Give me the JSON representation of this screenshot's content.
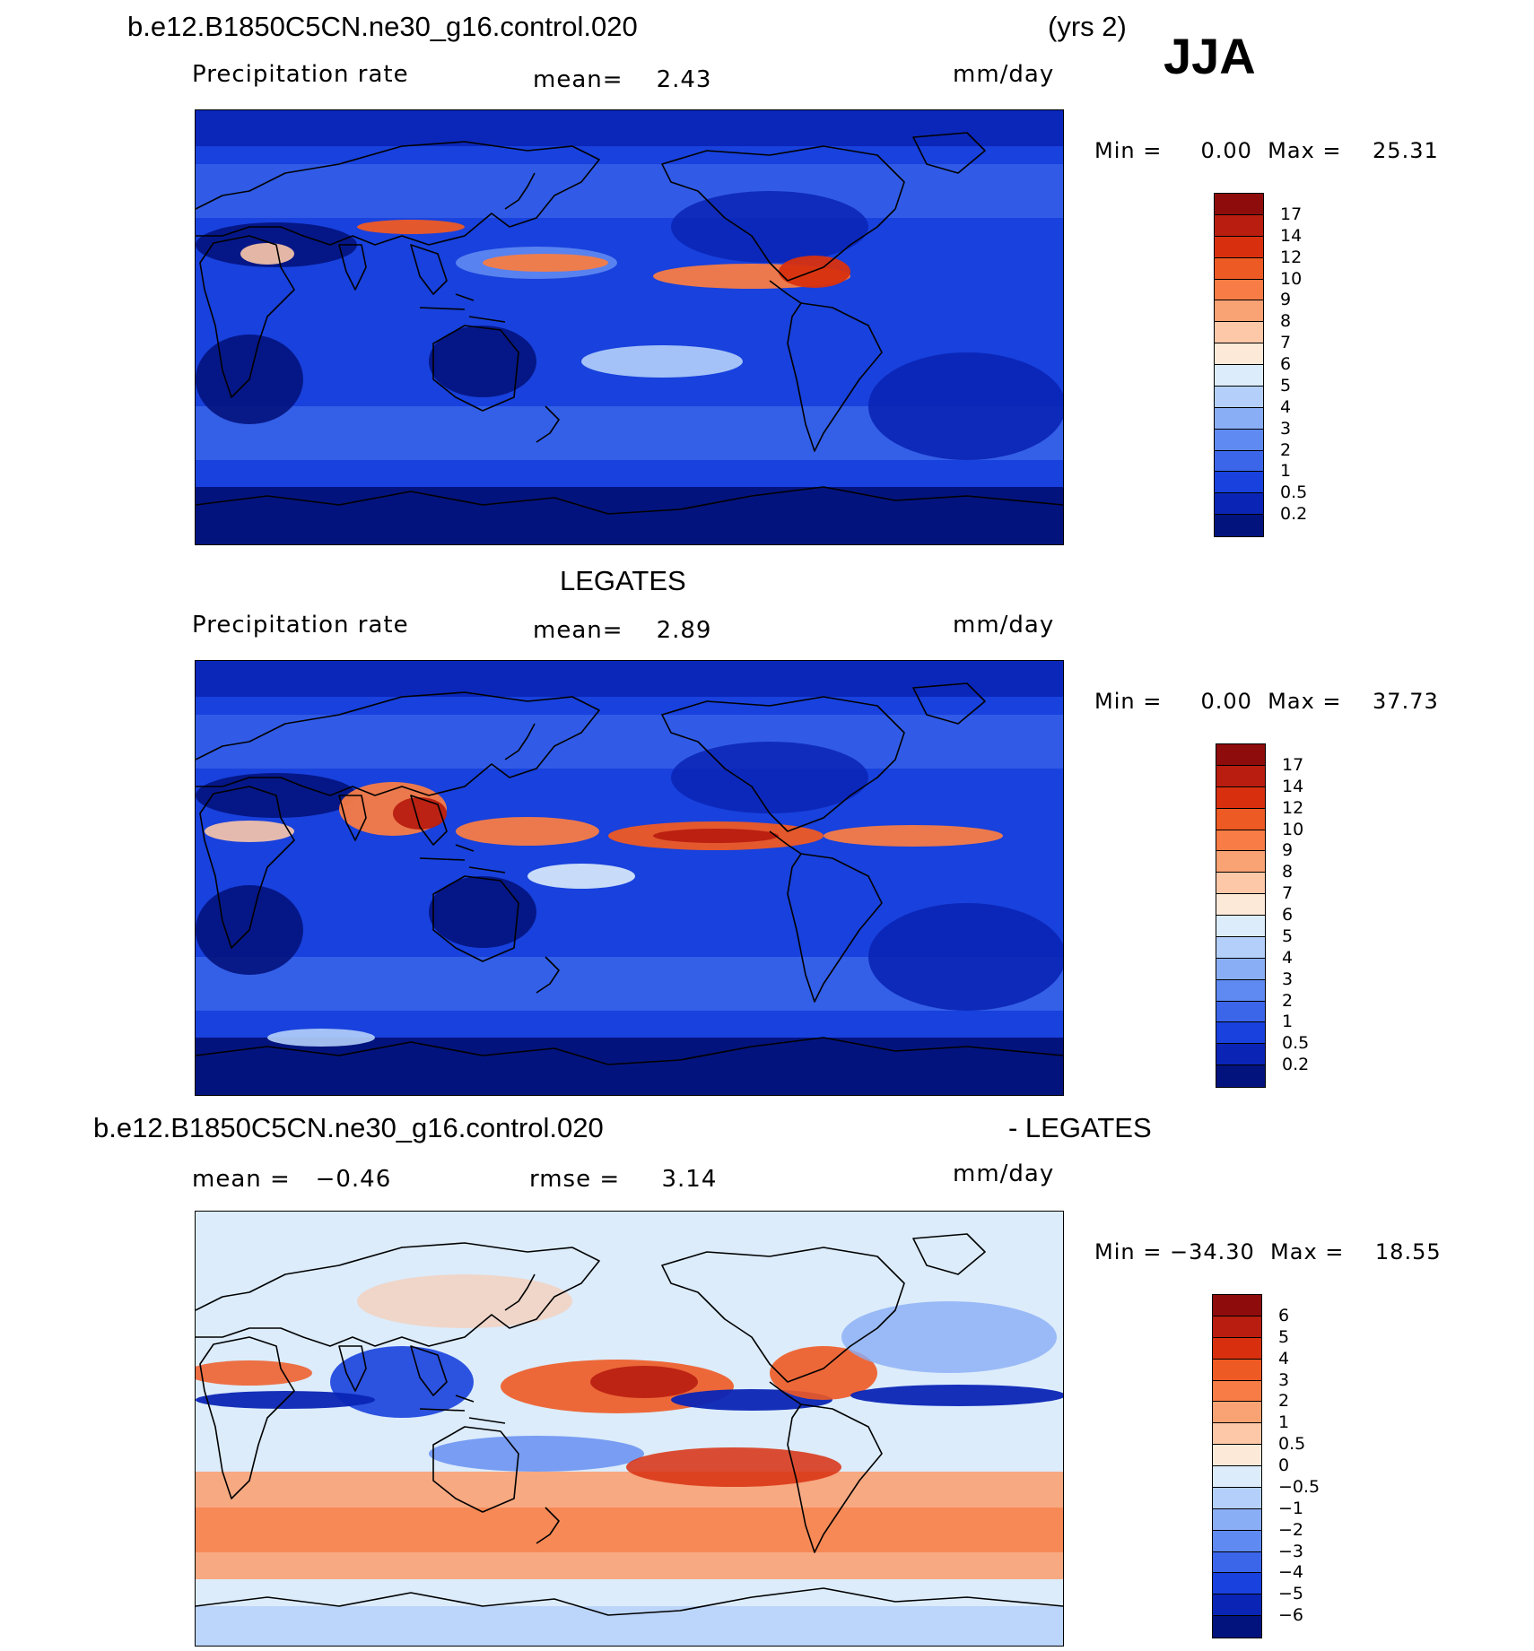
{
  "header": {
    "case_name": "b.e12.B1850C5CN.ne30_g16.control.020",
    "years": "(yrs 2)",
    "season": "JJA"
  },
  "panels": [
    {
      "id": "model",
      "title": "",
      "variable": "Precipitation rate",
      "stat_text": "mean=    2.43",
      "units": "mm/day",
      "minmax": "Min =     0.00  Max =    25.31",
      "colorbar_levels": [
        "17",
        "14",
        "12",
        "10",
        "9",
        "8",
        "7",
        "6",
        "5",
        "4",
        "3",
        "2",
        "1",
        "0.5",
        "0.2"
      ],
      "colors": [
        "#8e0c0c",
        "#b81d10",
        "#d8300f",
        "#ee5a23",
        "#f77c45",
        "#f9a274",
        "#fcc8a8",
        "#fde9d8",
        "#dcecfb",
        "#b4d0fa",
        "#8aaef6",
        "#5f8af1",
        "#3c66ea",
        "#1841dd",
        "#0a25b5",
        "#03137d"
      ]
    },
    {
      "id": "obs",
      "title": "LEGATES",
      "variable": "Precipitation rate",
      "stat_text": "mean=    2.89",
      "units": "mm/day",
      "minmax": "Min =     0.00  Max =    37.73",
      "colorbar_levels": [
        "17",
        "14",
        "12",
        "10",
        "9",
        "8",
        "7",
        "6",
        "5",
        "4",
        "3",
        "2",
        "1",
        "0.5",
        "0.2"
      ],
      "colors": [
        "#8e0c0c",
        "#b81d10",
        "#d8300f",
        "#ee5a23",
        "#f77c45",
        "#f9a274",
        "#fcc8a8",
        "#fde9d8",
        "#dcecfb",
        "#b4d0fa",
        "#8aaef6",
        "#5f8af1",
        "#3c66ea",
        "#1841dd",
        "#0a25b5",
        "#03137d"
      ]
    },
    {
      "id": "diff",
      "title_left": "b.e12.B1850C5CN.ne30_g16.control.020",
      "title_right": "- LEGATES",
      "mean_text": "mean =   −0.46",
      "rmse_text": "rmse =     3.14",
      "units": "mm/day",
      "minmax": "Min = −34.30  Max =    18.55",
      "colorbar_levels": [
        "6",
        "5",
        "4",
        "3",
        "2",
        "1",
        "0.5",
        "0",
        "−0.5",
        "−1",
        "−2",
        "−3",
        "−4",
        "−5",
        "−6"
      ],
      "colors": [
        "#8e0c0c",
        "#b81d10",
        "#d8300f",
        "#ee5a23",
        "#f77c45",
        "#f9a274",
        "#fcc8a8",
        "#fde9d8",
        "#dcecfb",
        "#b4d0fa",
        "#8aaef6",
        "#5f8af1",
        "#3c66ea",
        "#1841dd",
        "#0a25b5",
        "#03137d"
      ]
    }
  ]
}
